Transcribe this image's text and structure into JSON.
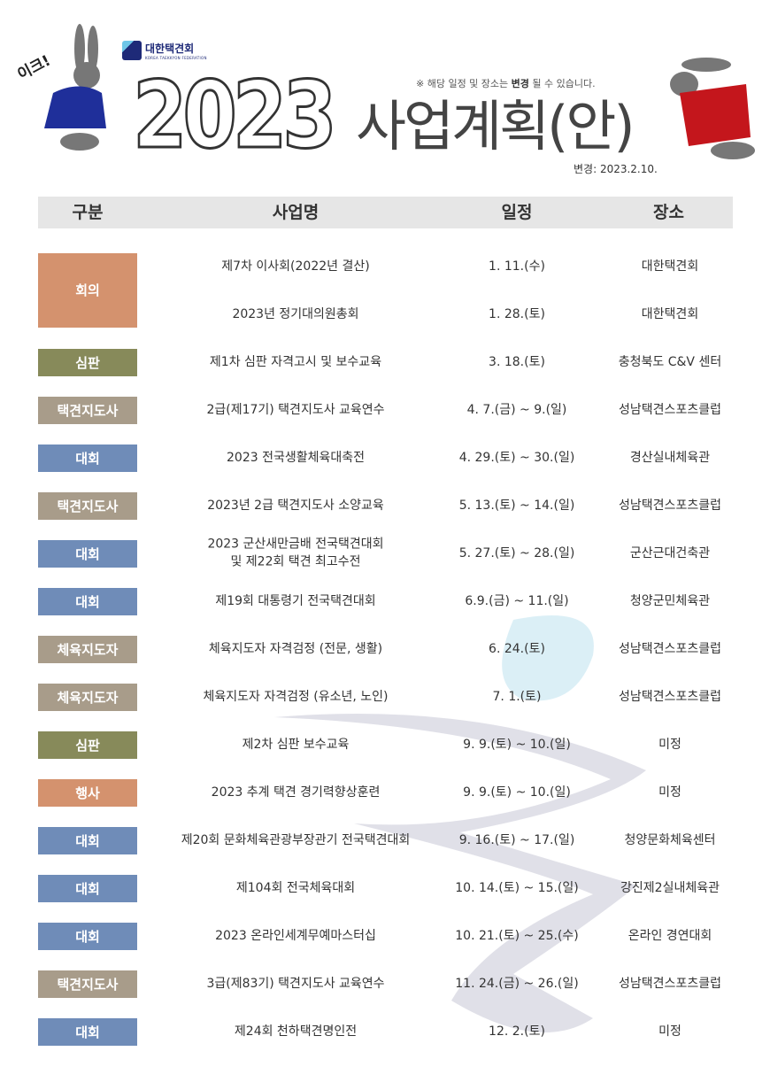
{
  "header": {
    "org_name": "대한택견회",
    "org_subname": "KOREA TAEKKYON FEDERATION",
    "exclaim": "이크!",
    "year": "2023",
    "title": "사업계획(안)",
    "notice_prefix": "※ 해당 일정 및 장소는 ",
    "notice_bold": "변경",
    "notice_suffix": " 될 수 있습니다.",
    "revised": "변경: 2023.2.10."
  },
  "columns": [
    "구분",
    "사업명",
    "일정",
    "장소"
  ],
  "colors": {
    "회의": "#d4926e",
    "심판": "#878a5a",
    "택견지도사": "#a89c8a",
    "대회": "#6f8cb8",
    "체육지도자": "#a89c8a",
    "행사": "#d4926e"
  },
  "groups": [
    {
      "category": "회의",
      "items": [
        {
          "name": "제7차 이사회(2022년 결산)",
          "date": "1. 11.(수)",
          "place": "대한택견회"
        },
        {
          "name": "2023년 정기대의원총회",
          "date": "1. 28.(토)",
          "place": "대한택견회"
        }
      ]
    },
    {
      "category": "심판",
      "items": [
        {
          "name": "제1차 심판 자격고시 및 보수교육",
          "date": "3. 18.(토)",
          "place": "충청북도 C&V 센터"
        }
      ]
    },
    {
      "category": "택견지도사",
      "items": [
        {
          "name": "2급(제17기) 택견지도사 교육연수",
          "date": "4. 7.(금) ~ 9.(일)",
          "place": "성남택견스포츠클럽"
        }
      ]
    },
    {
      "category": "대회",
      "items": [
        {
          "name": "2023 전국생활체육대축전",
          "date": "4. 29.(토) ~ 30.(일)",
          "place": "경산실내체육관"
        }
      ]
    },
    {
      "category": "택견지도사",
      "items": [
        {
          "name": "2023년 2급 택견지도사 소양교육",
          "date": "5. 13.(토) ~ 14.(일)",
          "place": "성남택견스포츠클럽"
        }
      ]
    },
    {
      "category": "대회",
      "items": [
        {
          "name": "2023 군산새만금배 전국택견대회\n및 제22회 택견 최고수전",
          "date": "5. 27.(토) ~ 28.(일)",
          "place": "군산근대건축관"
        }
      ]
    },
    {
      "category": "대회",
      "items": [
        {
          "name": "제19회 대통령기 전국택견대회",
          "date": "6.9.(금) ~ 11.(일)",
          "place": "청양군민체육관"
        }
      ]
    },
    {
      "category": "체육지도자",
      "items": [
        {
          "name": "체육지도자 자격검정 (전문, 생활)",
          "date": "6. 24.(토)",
          "place": "성남택견스포츠클럽"
        }
      ]
    },
    {
      "category": "체육지도자",
      "items": [
        {
          "name": "체육지도자 자격검정 (유소년, 노인)",
          "date": "7. 1.(토)",
          "place": "성남택견스포츠클럽"
        }
      ]
    },
    {
      "category": "심판",
      "items": [
        {
          "name": "제2차 심판 보수교육",
          "date": "9. 9.(토) ~ 10.(일)",
          "place": "미정"
        }
      ]
    },
    {
      "category": "행사",
      "items": [
        {
          "name": "2023 추계 택견 경기력향상훈련",
          "date": "9. 9.(토) ~ 10.(일)",
          "place": "미정"
        }
      ]
    },
    {
      "category": "대회",
      "items": [
        {
          "name": "제20회 문화체육관광부장관기 전국택견대회",
          "date": "9. 16.(토) ~ 17.(일)",
          "place": "청양문화체육센터"
        }
      ]
    },
    {
      "category": "대회",
      "items": [
        {
          "name": "제104회 전국체육대회",
          "date": "10. 14.(토) ~ 15.(일)",
          "place": "강진제2실내체육관"
        }
      ]
    },
    {
      "category": "대회",
      "items": [
        {
          "name": "2023 온라인세계무예마스터십",
          "date": "10. 21.(토) ~ 25.(수)",
          "place": "온라인 경연대회"
        }
      ]
    },
    {
      "category": "택견지도사",
      "items": [
        {
          "name": "3급(제83기) 택견지도사 교육연수",
          "date": "11. 24.(금) ~ 26.(일)",
          "place": "성남택견스포츠클럽"
        }
      ]
    },
    {
      "category": "대회",
      "items": [
        {
          "name": "제24회 천하택견명인전",
          "date": "12. 2.(토)",
          "place": "미정"
        }
      ]
    }
  ]
}
